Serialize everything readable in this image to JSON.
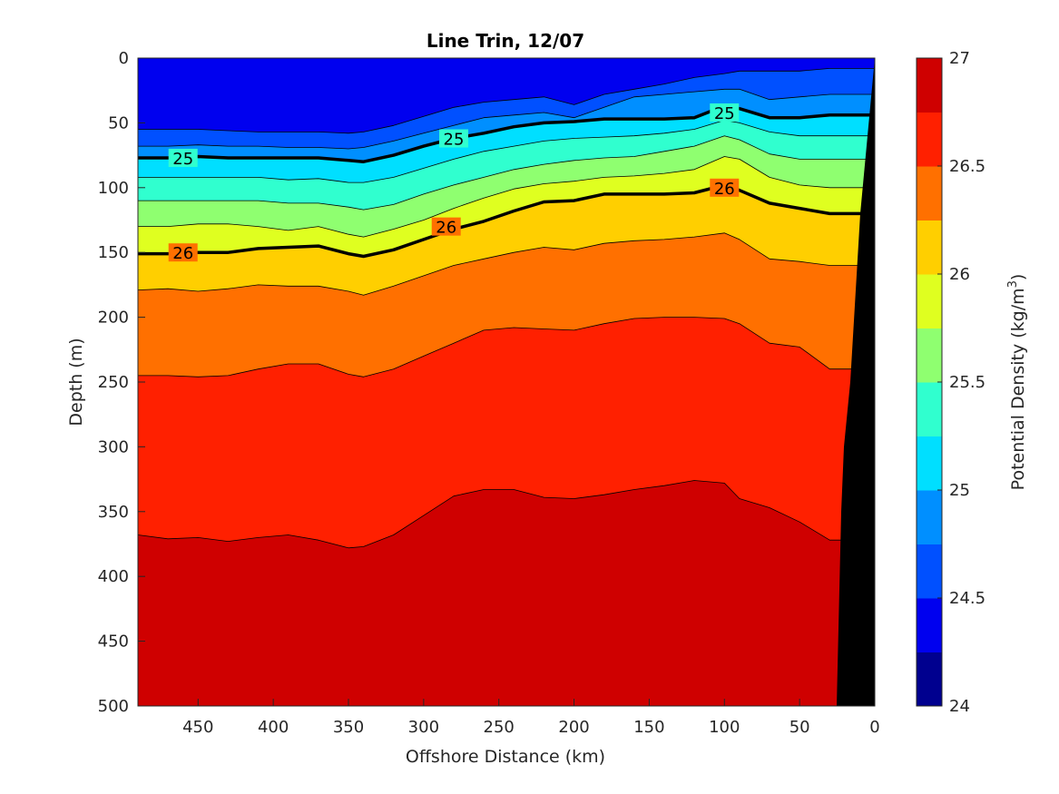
{
  "chart_data": {
    "type": "contour",
    "title": "Line Trin, 12/07",
    "xlabel": "Offshore Distance (km)",
    "ylabel": "Depth (m)",
    "xlim": [
      490,
      0
    ],
    "ylim": [
      0,
      500
    ],
    "x_reversed": true,
    "y_reversed": true,
    "xticks": [
      450,
      400,
      350,
      300,
      250,
      200,
      150,
      100,
      50,
      0
    ],
    "yticks": [
      0,
      50,
      100,
      150,
      200,
      250,
      300,
      350,
      400,
      450,
      500
    ],
    "colorbar": {
      "label_prefix": "Potential Density (kg/m",
      "label_exp": "3",
      "label_suffix": ")",
      "range": [
        24,
        27
      ],
      "ticks": [
        24,
        24.5,
        25,
        25.5,
        26,
        26.5,
        27
      ],
      "levels": [
        24,
        24.25,
        24.5,
        24.75,
        25,
        25.25,
        25.5,
        25.75,
        26,
        26.25,
        26.5,
        26.75,
        27
      ],
      "colors": [
        "#00008f",
        "#0000ef",
        "#0050ff",
        "#008fff",
        "#00dfff",
        "#30ffcf",
        "#8fff70",
        "#dfff20",
        "#ffcf00",
        "#ff7000",
        "#ff2000",
        "#cf0000"
      ]
    },
    "x": [
      490,
      470,
      450,
      430,
      410,
      390,
      370,
      350,
      340,
      320,
      300,
      280,
      260,
      240,
      220,
      200,
      180,
      160,
      140,
      120,
      100,
      90,
      70,
      50,
      30
    ],
    "isopycnals": [
      {
        "level": 24.75,
        "depth": [
          55,
          55,
          55,
          56,
          57,
          57,
          57,
          58,
          57,
          52,
          45,
          38,
          34,
          32,
          30,
          36,
          28,
          24,
          20,
          15,
          12,
          10,
          10,
          10,
          8
        ]
      },
      {
        "level": 25.0,
        "depth": [
          68,
          68,
          67,
          68,
          68,
          69,
          69,
          70,
          69,
          64,
          58,
          52,
          46,
          44,
          42,
          46,
          38,
          30,
          28,
          26,
          24,
          24,
          32,
          30,
          28
        ]
      },
      {
        "level": 25.25,
        "depth": [
          77,
          77,
          76,
          77,
          77,
          77,
          77,
          79,
          80,
          75,
          68,
          62,
          58,
          53,
          50,
          49,
          47,
          47,
          47,
          46,
          37,
          39,
          46,
          46,
          44
        ]
      },
      {
        "level": 25.5,
        "depth": [
          92,
          92,
          92,
          92,
          92,
          94,
          93,
          96,
          96,
          92,
          85,
          78,
          72,
          68,
          64,
          62,
          61,
          60,
          58,
          55,
          48,
          50,
          57,
          60,
          60
        ]
      },
      {
        "level": 25.75,
        "depth": [
          110,
          110,
          110,
          110,
          110,
          112,
          112,
          115,
          117,
          113,
          105,
          98,
          92,
          86,
          82,
          79,
          77,
          76,
          72,
          68,
          60,
          63,
          74,
          78,
          78
        ]
      },
      {
        "level": 26.0,
        "depth": [
          130,
          130,
          128,
          128,
          130,
          133,
          130,
          136,
          138,
          132,
          125,
          116,
          108,
          101,
          97,
          95,
          92,
          91,
          89,
          86,
          76,
          78,
          92,
          98,
          100
        ]
      },
      {
        "level": 26.25,
        "depth": [
          151,
          151,
          150,
          150,
          147,
          146,
          145,
          151,
          153,
          148,
          140,
          132,
          126,
          118,
          111,
          110,
          105,
          105,
          105,
          104,
          98,
          102,
          112,
          116,
          120
        ]
      },
      {
        "level": 26.5,
        "depth": [
          179,
          178,
          180,
          178,
          175,
          176,
          176,
          180,
          183,
          176,
          168,
          160,
          155,
          150,
          146,
          148,
          143,
          141,
          140,
          138,
          135,
          140,
          155,
          157,
          160
        ]
      },
      {
        "level": 26.75,
        "depth": [
          245,
          245,
          246,
          245,
          240,
          236,
          236,
          244,
          246,
          240,
          230,
          220,
          210,
          208,
          209,
          210,
          205,
          201,
          200,
          200,
          201,
          205,
          220,
          223,
          240
        ]
      },
      {
        "level": 27.0,
        "depth": [
          368,
          371,
          370,
          373,
          370,
          368,
          372,
          378,
          377,
          368,
          353,
          338,
          333,
          333,
          339,
          340,
          337,
          333,
          330,
          326,
          328,
          340,
          347,
          358,
          372
        ]
      }
    ],
    "labeled_contours": [
      {
        "level": "25",
        "points": [
          [
            460,
            77
          ],
          [
            280,
            62
          ],
          [
            100,
            42
          ]
        ]
      },
      {
        "level": "26",
        "points": [
          [
            460,
            150
          ],
          [
            285,
            130
          ],
          [
            100,
            100
          ]
        ]
      }
    ],
    "bathymetry_color": "#000000"
  }
}
